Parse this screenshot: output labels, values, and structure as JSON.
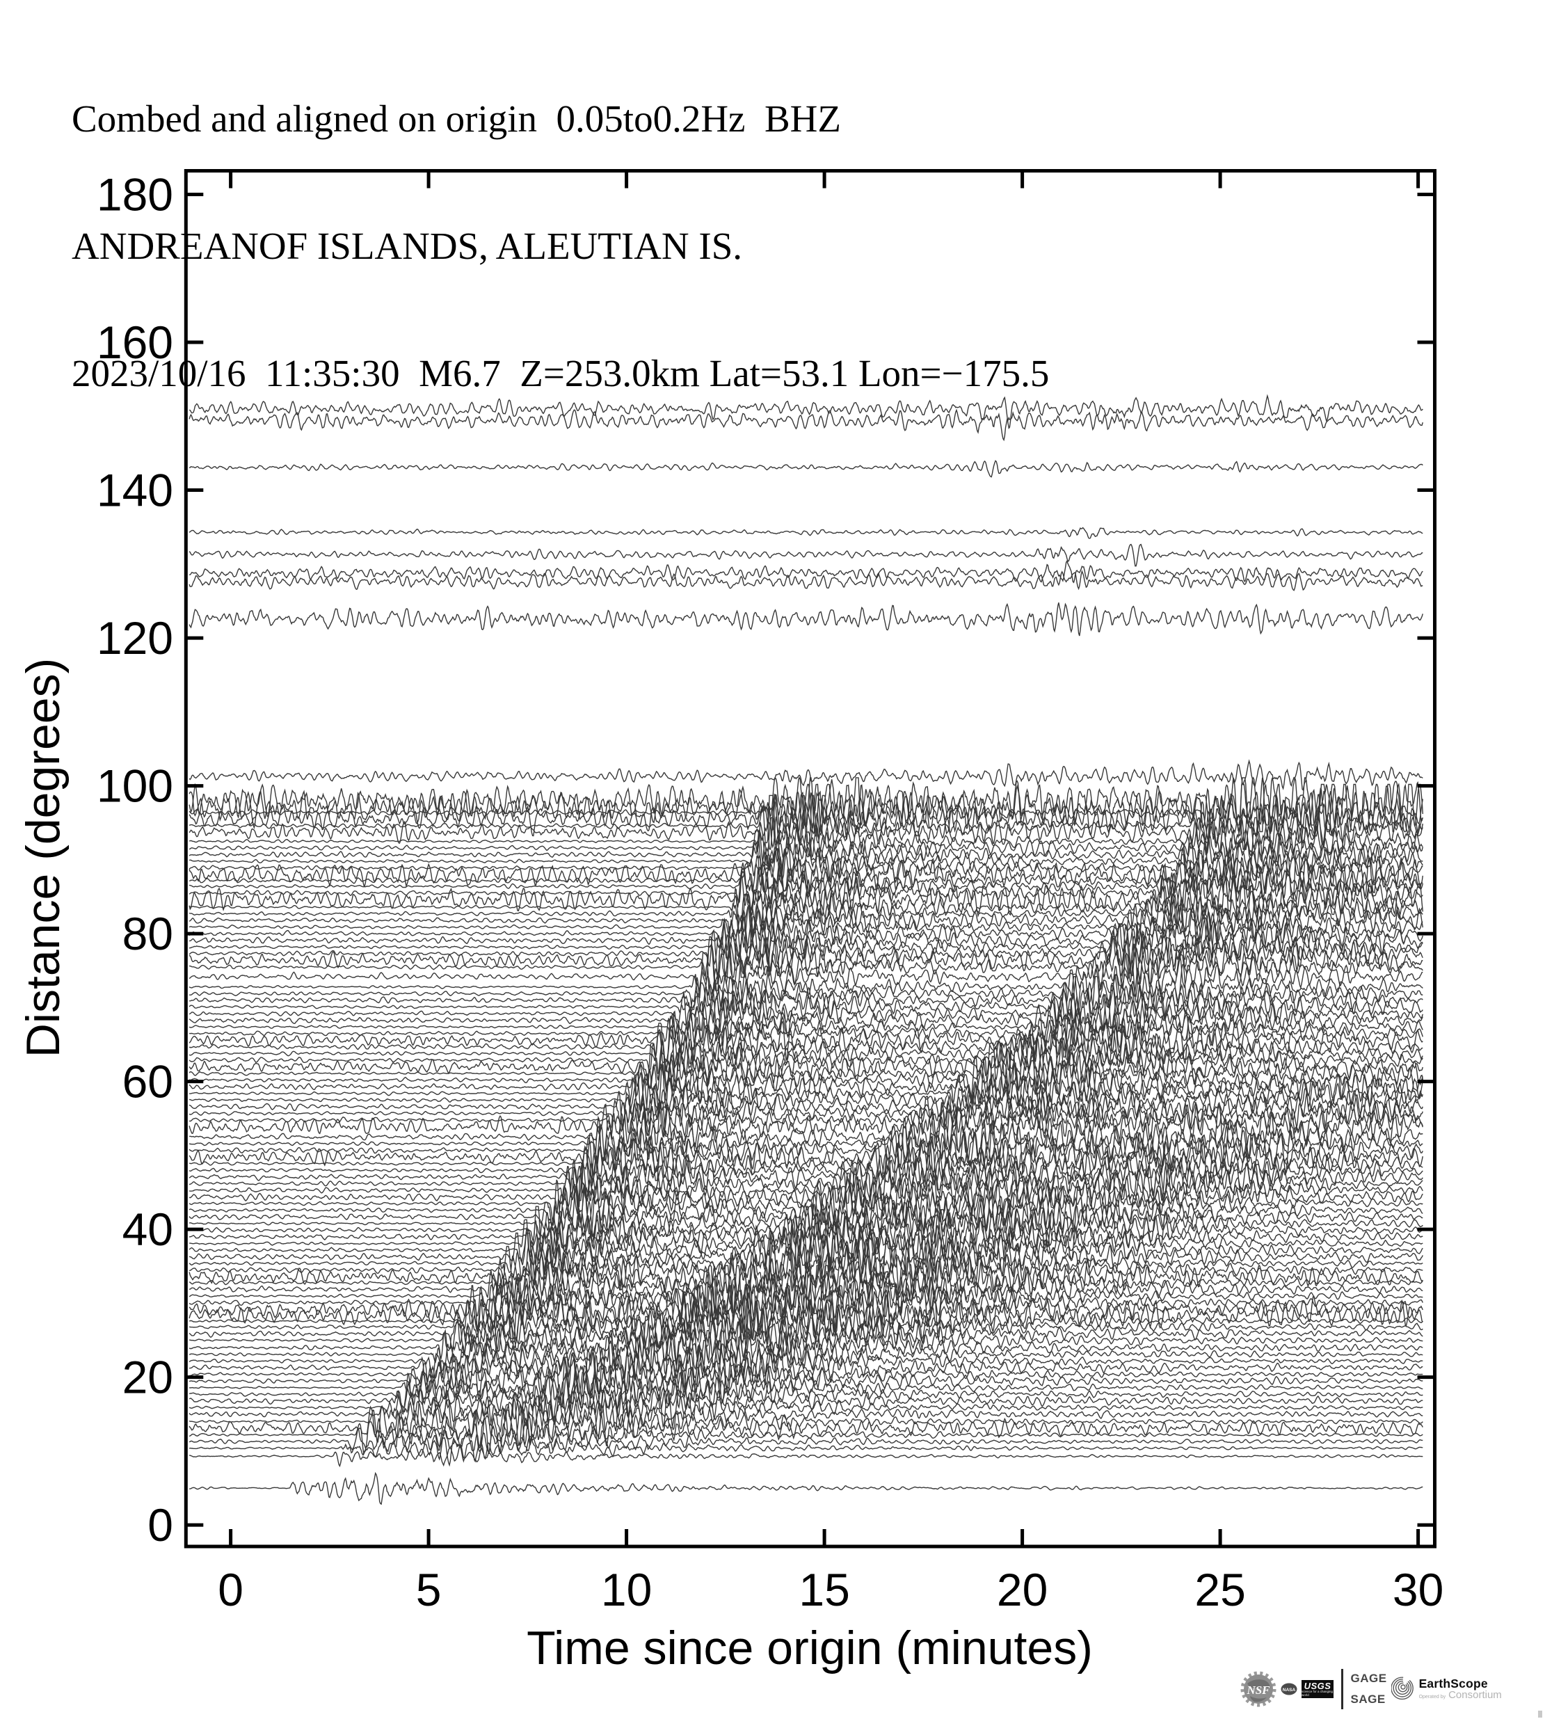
{
  "header": {
    "line1": "Combed and aligned on origin  0.05to0.2Hz  BHZ",
    "line2": "ANDREANOF ISLANDS, ALEUTIAN IS.",
    "line3": "2023/10/16  11:35:30  M6.7  Z=253.0km Lat=53.1 Lon=−175.5"
  },
  "chart_data": {
    "type": "line",
    "subtype": "seismic-record-section",
    "title": "Combed and aligned on origin  0.05to0.2Hz  BHZ | ANDREANOF ISLANDS, ALEUTIAN IS. | 2023/10/16 11:35:30 M6.7 Z=253.0km Lat=53.1 Lon=-175.5",
    "xlabel": "Time since origin (minutes)",
    "ylabel": "Distance (degrees)",
    "xlim": [
      -1.13,
      30.42
    ],
    "ylim": [
      -2.9,
      183.2
    ],
    "x_ticks": [
      0,
      5,
      10,
      15,
      20,
      25,
      30
    ],
    "y_ticks": [
      0,
      20,
      40,
      60,
      80,
      100,
      120,
      140,
      160,
      180
    ],
    "grid": false,
    "legend": "none",
    "axis_color": "#000000",
    "trace_color": "#383838",
    "s_to_p_ratio": 1.82,
    "trace_fields": [
      "distance_deg",
      "p_arrival_min",
      "noise_amp_px",
      "event_amp_px"
    ],
    "traces": [
      [
        5.0,
        1.5,
        0.8,
        9
      ],
      [
        9.3,
        2.55,
        0.9,
        5
      ],
      [
        10.4,
        2.75,
        1.0,
        8
      ],
      [
        11.3,
        2.93,
        1.4,
        9
      ],
      [
        12.2,
        3.14,
        1.0,
        11
      ],
      [
        13.1,
        3.31,
        5.0,
        13
      ],
      [
        14.0,
        3.5,
        1.2,
        14
      ],
      [
        15.0,
        3.7,
        1.8,
        16
      ],
      [
        15.9,
        3.88,
        1.1,
        18
      ],
      [
        16.8,
        4.02,
        2.2,
        15
      ],
      [
        17.7,
        4.16,
        1.3,
        19
      ],
      [
        18.6,
        4.29,
        1.0,
        17
      ],
      [
        19.5,
        4.43,
        1.6,
        21
      ],
      [
        20.4,
        4.57,
        1.2,
        18
      ],
      [
        21.3,
        4.73,
        2.0,
        22
      ],
      [
        22.2,
        4.88,
        1.4,
        19
      ],
      [
        23.1,
        5.04,
        1.1,
        23
      ],
      [
        24.0,
        5.2,
        1.7,
        20
      ],
      [
        25.0,
        5.35,
        1.3,
        24
      ],
      [
        25.9,
        5.48,
        2.1,
        21
      ],
      [
        26.8,
        5.62,
        1.5,
        25
      ],
      [
        27.6,
        5.78,
        1.2,
        22
      ],
      [
        28.4,
        5.92,
        7.0,
        26
      ],
      [
        29.2,
        6.03,
        6.5,
        23
      ],
      [
        30.1,
        6.17,
        1.8,
        27
      ],
      [
        31.0,
        6.3,
        1.3,
        24
      ],
      [
        31.9,
        6.44,
        2.3,
        28
      ],
      [
        32.8,
        6.57,
        1.6,
        25
      ],
      [
        33.6,
        6.69,
        5.5,
        29
      ],
      [
        34.5,
        6.83,
        1.9,
        26
      ],
      [
        35.4,
        6.96,
        1.4,
        22
      ],
      [
        36.3,
        7.09,
        2.5,
        27
      ],
      [
        37.2,
        7.21,
        1.7,
        24
      ],
      [
        38.1,
        7.31,
        1.2,
        28
      ],
      [
        39.0,
        7.45,
        2.0,
        25
      ],
      [
        39.9,
        7.59,
        1.5,
        29
      ],
      [
        40.8,
        7.7,
        1.1,
        26
      ],
      [
        41.7,
        7.81,
        2.2,
        23
      ],
      [
        42.6,
        7.93,
        1.6,
        27
      ],
      [
        43.5,
        8.04,
        1.3,
        24
      ],
      [
        44.4,
        8.15,
        2.4,
        28
      ],
      [
        45.3,
        8.31,
        1.8,
        25
      ],
      [
        46.2,
        8.42,
        1.4,
        29
      ],
      [
        47.1,
        8.53,
        2.1,
        26
      ],
      [
        48.0,
        8.65,
        1.5,
        23
      ],
      [
        48.9,
        8.76,
        1.2,
        27
      ],
      [
        49.8,
        8.88,
        5.0,
        24
      ],
      [
        50.7,
        8.99,
        1.9,
        28
      ],
      [
        51.6,
        9.1,
        1.4,
        25
      ],
      [
        52.5,
        9.21,
        2.3,
        29
      ],
      [
        53.9,
        9.39,
        6.0,
        26
      ],
      [
        54.8,
        9.5,
        1.7,
        23
      ],
      [
        55.7,
        9.61,
        1.3,
        27
      ],
      [
        56.6,
        9.73,
        2.0,
        24
      ],
      [
        57.5,
        9.84,
        1.5,
        28
      ],
      [
        58.4,
        9.95,
        1.1,
        25
      ],
      [
        59.3,
        10.06,
        2.2,
        29
      ],
      [
        60.2,
        10.17,
        1.6,
        26
      ],
      [
        61.1,
        10.29,
        1.3,
        23
      ],
      [
        62.0,
        10.4,
        5.0,
        27
      ],
      [
        62.9,
        10.5,
        1.8,
        24
      ],
      [
        63.8,
        10.58,
        1.4,
        28
      ],
      [
        64.7,
        10.69,
        2.1,
        25
      ],
      [
        65.6,
        10.8,
        4.5,
        29
      ],
      [
        66.5,
        10.91,
        1.5,
        26
      ],
      [
        67.4,
        11.02,
        1.2,
        23
      ],
      [
        68.3,
        11.13,
        2.4,
        27
      ],
      [
        69.2,
        11.21,
        1.7,
        24
      ],
      [
        70.1,
        11.31,
        1.3,
        28
      ],
      [
        71.0,
        11.4,
        2.0,
        25
      ],
      [
        71.9,
        11.49,
        1.5,
        22
      ],
      [
        72.8,
        11.58,
        1.1,
        26
      ],
      [
        74.2,
        11.72,
        2.2,
        23
      ],
      [
        75.5,
        11.85,
        1.6,
        27
      ],
      [
        76.4,
        11.94,
        5.0,
        24
      ],
      [
        77.3,
        12.03,
        1.9,
        28
      ],
      [
        78.2,
        12.12,
        1.4,
        25
      ],
      [
        79.1,
        12.21,
        2.3,
        29
      ],
      [
        80.0,
        12.3,
        1.7,
        26
      ],
      [
        80.9,
        12.39,
        1.3,
        23
      ],
      [
        81.8,
        12.48,
        2.1,
        27
      ],
      [
        82.7,
        12.55,
        1.5,
        24
      ],
      [
        83.6,
        12.62,
        1.2,
        28
      ],
      [
        84.6,
        12.7,
        8.0,
        25
      ],
      [
        85.5,
        12.76,
        1.8,
        29
      ],
      [
        86.4,
        12.83,
        1.4,
        26
      ],
      [
        87.2,
        12.89,
        2.2,
        23
      ],
      [
        88.0,
        12.95,
        8.5,
        27
      ],
      [
        88.9,
        13.02,
        1.6,
        24
      ],
      [
        89.8,
        13.09,
        1.3,
        28
      ],
      [
        90.7,
        13.14,
        2.0,
        25
      ],
      [
        91.6,
        13.18,
        1.5,
        22
      ],
      [
        92.5,
        13.23,
        1.1,
        26
      ],
      [
        93.7,
        13.29,
        6.0,
        23
      ],
      [
        94.6,
        13.33,
        1.9,
        27
      ],
      [
        95.5,
        13.38,
        9.0,
        24
      ],
      [
        96.4,
        13.42,
        2.1,
        28
      ],
      [
        97.0,
        13.45,
        13.0,
        25
      ],
      [
        97.9,
        13.49,
        13.0,
        29
      ],
      [
        101.3,
        13.65,
        4.0,
        6
      ],
      [
        122.6,
        null,
        8.0,
        0
      ],
      [
        127.6,
        null,
        5.5,
        0
      ],
      [
        128.8,
        null,
        5.0,
        0
      ],
      [
        131.3,
        null,
        3.0,
        0
      ],
      [
        134.3,
        null,
        2.2,
        0
      ],
      [
        143.1,
        null,
        2.4,
        0
      ],
      [
        149.4,
        null,
        6.5,
        0
      ],
      [
        151.0,
        null,
        6.0,
        0
      ]
    ],
    "bursts": {
      "101.3": [
        [
          20.5,
          6,
          0.8
        ],
        [
          24.0,
          5,
          1.0
        ],
        [
          27.0,
          5,
          0.8
        ]
      ],
      "122.6": [
        [
          20.3,
          6,
          0.5
        ],
        [
          21.3,
          5,
          0.4
        ],
        [
          26.8,
          4,
          0.6
        ]
      ],
      "127.6": [
        [
          21.2,
          5,
          0.5
        ]
      ],
      "128.8": [
        [
          21.0,
          6,
          0.5
        ],
        [
          26.0,
          4,
          0.5
        ]
      ],
      "131.3": [
        [
          21.0,
          7,
          0.4
        ],
        [
          22.8,
          5,
          0.4
        ]
      ],
      "134.3": [
        [
          21.6,
          6,
          0.35
        ]
      ],
      "143.1": [
        [
          19.3,
          5,
          0.3
        ],
        [
          21.5,
          3,
          0.4
        ],
        [
          25.6,
          3,
          0.5
        ]
      ],
      "149.4": [
        [
          19.4,
          9,
          0.5
        ],
        [
          22.4,
          5,
          0.6
        ]
      ],
      "151.0": [
        [
          19.5,
          7,
          0.5
        ],
        [
          22.5,
          5,
          0.5
        ],
        [
          27.0,
          5,
          0.7
        ]
      ]
    }
  },
  "branding": {
    "nsf_label": "NSF",
    "nasa_label": "NASA",
    "usgs_label": "USGS",
    "usgs_tagline": "science for a changing world",
    "gage_label": "GAGE",
    "sage_label": "SAGE",
    "earthscope_label": "EarthScope",
    "operated_by_label": "Operated by",
    "consortium_label": "Consortium"
  }
}
